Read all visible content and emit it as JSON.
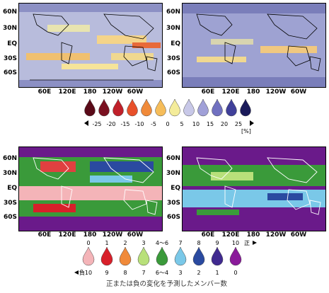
{
  "maps": {
    "lat_labels": [
      "60N",
      "30N",
      "EQ",
      "30S",
      "60S"
    ],
    "lon_labels": [
      "60E",
      "120E",
      "180",
      "120W",
      "60W"
    ]
  },
  "percent_legend": {
    "values": [
      "-25",
      "-20",
      "-15",
      "-10",
      "-5",
      "0",
      "5",
      "10",
      "15",
      "20",
      "25"
    ],
    "unit": "[%]",
    "colors": [
      "#7a1020",
      "#c0202a",
      "#e8502a",
      "#f08a3a",
      "#f6bd5a",
      "#f4ec9a",
      "#c8c8e8",
      "#a0a0d8",
      "#7070c0",
      "#40409a",
      "#1a1a5a"
    ]
  },
  "member_legend": {
    "positive": [
      "0",
      "1",
      "2",
      "3",
      "4〜6",
      "7",
      "8",
      "9",
      "10"
    ],
    "positive_label": "正",
    "negative": [
      "10",
      "9",
      "8",
      "7",
      "6〜4",
      "3",
      "2",
      "1",
      "0"
    ],
    "negative_label": "負",
    "colors": [
      "#f4b4b8",
      "#d8202a",
      "#f08a3a",
      "#b8e07a",
      "#3a9a3a",
      "#7ac8e8",
      "#2a4aa0",
      "#402a90",
      "#8a1a9a"
    ],
    "caption": "正または負の変化を予測したメンバー数"
  }
}
